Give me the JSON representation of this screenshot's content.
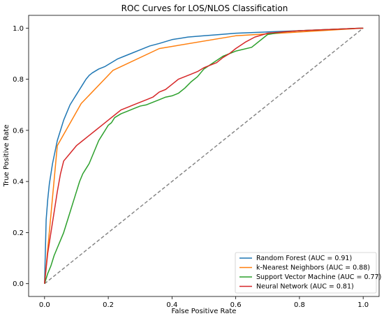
{
  "chart_data": {
    "type": "line",
    "title": "ROC Curves for LOS/NLOS Classification",
    "xlabel": "False Positive Rate",
    "ylabel": "True Positive Rate",
    "xlim": [
      -0.05,
      1.05
    ],
    "ylim": [
      -0.05,
      1.05
    ],
    "xticks": [
      "0.0",
      "0.2",
      "0.4",
      "0.6",
      "0.8",
      "1.0"
    ],
    "yticks": [
      "0.0",
      "0.2",
      "0.4",
      "0.6",
      "0.8",
      "1.0"
    ],
    "grid": false,
    "legend_position": "lower-right",
    "diagonal": {
      "x": [
        0,
        1
      ],
      "y": [
        0,
        1
      ],
      "color": "#808080",
      "style": "dashed"
    },
    "series": [
      {
        "name": "Random Forest (AUC = 0.91)",
        "color": "#1f77b4",
        "x": [
          0,
          0.005,
          0.01,
          0.015,
          0.02,
          0.025,
          0.03,
          0.035,
          0.04,
          0.05,
          0.06,
          0.07,
          0.08,
          0.09,
          0.1,
          0.11,
          0.12,
          0.13,
          0.14,
          0.15,
          0.17,
          0.19,
          0.21,
          0.23,
          0.25,
          0.28,
          0.3,
          0.33,
          0.36,
          0.4,
          0.45,
          0.5,
          0.55,
          0.6,
          0.7,
          0.8,
          0.9,
          1.0
        ],
        "y": [
          0,
          0.25,
          0.33,
          0.39,
          0.43,
          0.47,
          0.5,
          0.53,
          0.56,
          0.6,
          0.64,
          0.67,
          0.7,
          0.72,
          0.74,
          0.76,
          0.78,
          0.8,
          0.815,
          0.825,
          0.84,
          0.85,
          0.865,
          0.88,
          0.89,
          0.905,
          0.915,
          0.93,
          0.94,
          0.955,
          0.965,
          0.97,
          0.975,
          0.98,
          0.985,
          0.99,
          0.995,
          1.0
        ]
      },
      {
        "name": "k-Nearest Neighbors (AUC = 0.88)",
        "color": "#ff7f0e",
        "x": [
          0,
          0.04,
          0.115,
          0.215,
          0.36,
          0.6,
          1.0
        ],
        "y": [
          0,
          0.54,
          0.705,
          0.835,
          0.92,
          0.97,
          1.0
        ]
      },
      {
        "name": "Support Vector Machine (AUC = 0.77)",
        "color": "#2ca02c",
        "x": [
          0,
          0.01,
          0.02,
          0.03,
          0.04,
          0.05,
          0.06,
          0.07,
          0.08,
          0.09,
          0.1,
          0.11,
          0.12,
          0.13,
          0.14,
          0.15,
          0.16,
          0.17,
          0.18,
          0.19,
          0.2,
          0.21,
          0.22,
          0.24,
          0.26,
          0.28,
          0.3,
          0.32,
          0.34,
          0.36,
          0.38,
          0.4,
          0.42,
          0.44,
          0.46,
          0.48,
          0.5,
          0.53,
          0.56,
          0.6,
          0.65,
          0.7,
          0.75,
          0.8,
          0.9,
          1.0
        ],
        "y": [
          0,
          0.04,
          0.07,
          0.11,
          0.14,
          0.17,
          0.2,
          0.24,
          0.28,
          0.32,
          0.36,
          0.4,
          0.43,
          0.45,
          0.47,
          0.5,
          0.53,
          0.56,
          0.58,
          0.6,
          0.62,
          0.63,
          0.65,
          0.665,
          0.675,
          0.685,
          0.695,
          0.7,
          0.71,
          0.72,
          0.73,
          0.735,
          0.745,
          0.765,
          0.79,
          0.81,
          0.84,
          0.865,
          0.89,
          0.91,
          0.925,
          0.975,
          0.985,
          0.99,
          0.995,
          1.0
        ]
      },
      {
        "name": "Neural Network (AUC = 0.81)",
        "color": "#d62728",
        "x": [
          0,
          0.01,
          0.02,
          0.03,
          0.04,
          0.05,
          0.06,
          0.08,
          0.1,
          0.12,
          0.14,
          0.16,
          0.18,
          0.2,
          0.22,
          0.24,
          0.26,
          0.28,
          0.3,
          0.32,
          0.34,
          0.36,
          0.38,
          0.4,
          0.42,
          0.44,
          0.46,
          0.48,
          0.5,
          0.52,
          0.54,
          0.56,
          0.58,
          0.6,
          0.63,
          0.66,
          0.7,
          0.75,
          0.8,
          0.9,
          1.0
        ],
        "y": [
          0,
          0.12,
          0.2,
          0.28,
          0.36,
          0.43,
          0.48,
          0.51,
          0.54,
          0.56,
          0.58,
          0.6,
          0.62,
          0.64,
          0.66,
          0.68,
          0.69,
          0.7,
          0.71,
          0.72,
          0.73,
          0.75,
          0.76,
          0.78,
          0.8,
          0.81,
          0.82,
          0.83,
          0.845,
          0.855,
          0.865,
          0.885,
          0.9,
          0.92,
          0.945,
          0.965,
          0.98,
          0.985,
          0.99,
          0.995,
          1.0
        ]
      }
    ]
  }
}
